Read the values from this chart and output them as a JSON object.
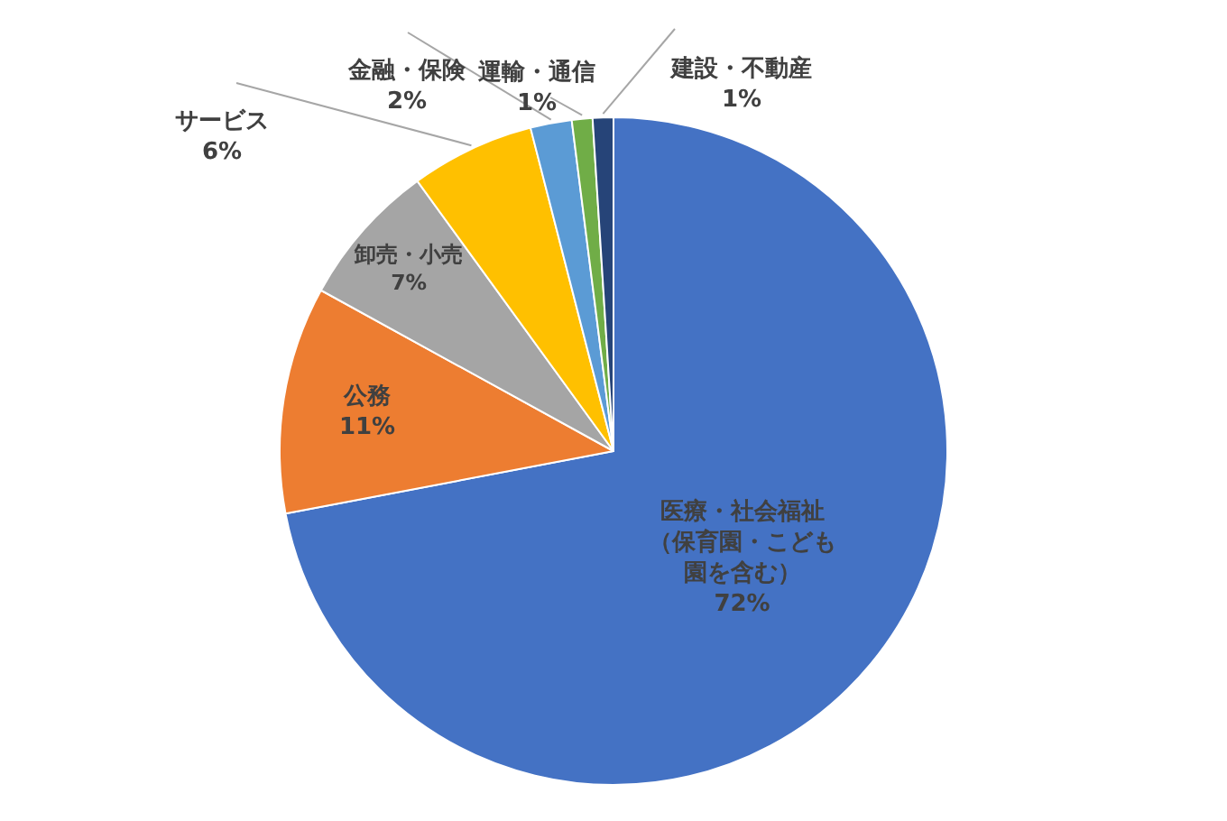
{
  "chart_data": {
    "type": "pie",
    "categories": [
      "医療・社会福祉（保育園・こども園を含む）",
      "公務",
      "卸売・小売",
      "サービス",
      "金融・保険",
      "運輸・通信",
      "建設・不動産"
    ],
    "values": [
      72,
      11,
      7,
      6,
      2,
      1,
      1
    ],
    "value_labels": [
      "72%",
      "11%",
      "7%",
      "6%",
      "2%",
      "1%",
      "1%"
    ],
    "colors": [
      "#4472c4",
      "#ed7d31",
      "#a5a5a5",
      "#ffc000",
      "#5b9bd5",
      "#70ad47",
      "#264478"
    ],
    "legend": false
  }
}
